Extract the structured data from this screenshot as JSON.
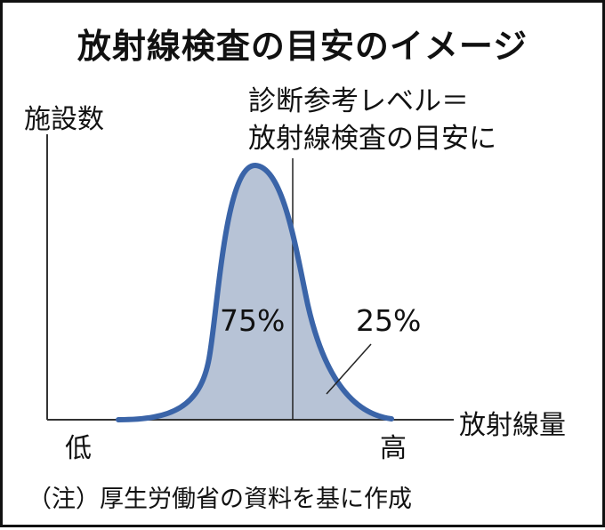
{
  "title": "放射線検査の目安のイメージ",
  "note": "（注）厚生労働省の資料を基に作成",
  "chart_data": {
    "type": "area",
    "description_labels": {
      "ylabel": "施設数",
      "xlabel": "放射線量",
      "x_low": "低",
      "x_high": "高"
    },
    "reference_line": {
      "label_line1": "診断参考レベル＝",
      "label_line2": "放射線検査の目安に"
    },
    "shares": [
      {
        "label": "75%",
        "value": 75
      },
      {
        "label": "25%",
        "value": 25
      }
    ],
    "colors": {
      "curve": "#3a64a8",
      "fill": "#b7c3d6",
      "axis": "#333333"
    }
  }
}
